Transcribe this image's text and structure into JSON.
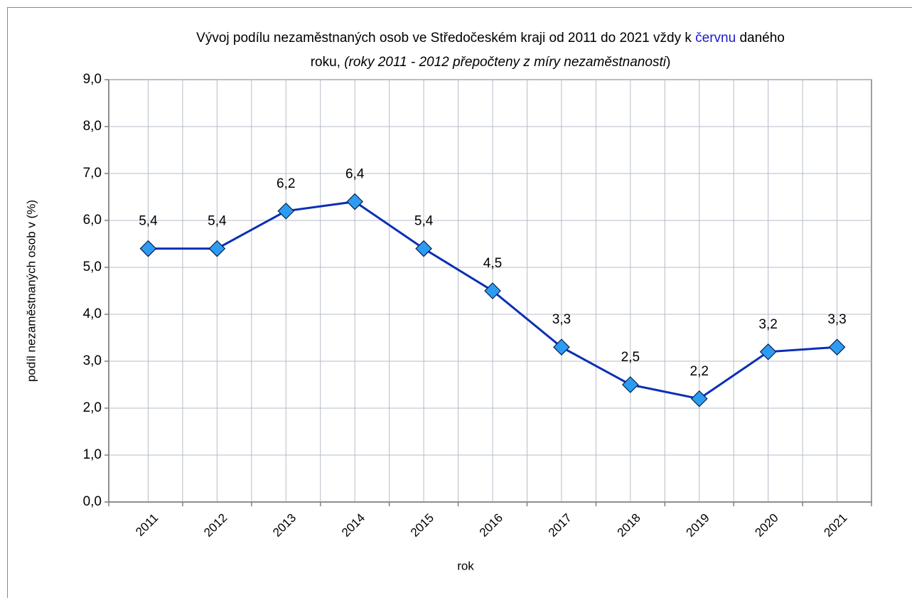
{
  "chart_data": {
    "type": "line",
    "title_parts": [
      "Vývoj podílu nezaměstnaných osob ve Středočeském kraji od 2011 do 2021 vždy k ",
      "červnu",
      " daného",
      "roku, ",
      "(roky 2011 - 2012 přepočteny z míry nezaměstnanosti",
      ")"
    ],
    "x_label": "rok",
    "y_label": "podíl nezaměstnaných osob v (%)",
    "categories": [
      "2011",
      "2012",
      "2013",
      "2014",
      "2015",
      "2016",
      "2017",
      "2018",
      "2019",
      "2020",
      "2021"
    ],
    "series": [
      {
        "name": "podíl nezaměstnaných osob",
        "color": "#0a2fb5",
        "marker_color": "#2c9cf2",
        "values": [
          5.4,
          5.4,
          6.2,
          6.4,
          5.4,
          4.5,
          3.3,
          2.5,
          2.2,
          3.2,
          3.3
        ],
        "value_labels": [
          "5,4",
          "5,4",
          "6,2",
          "6,4",
          "5,4",
          "4,5",
          "3,3",
          "2,5",
          "2,2",
          "3,2",
          "3,3"
        ]
      }
    ],
    "ylim": [
      0,
      9
    ],
    "yticks": [
      {
        "value": 0,
        "label": "0,0"
      },
      {
        "value": 1,
        "label": "1,0"
      },
      {
        "value": 2,
        "label": "2,0"
      },
      {
        "value": 3,
        "label": "3,0"
      },
      {
        "value": 4,
        "label": "4,0"
      },
      {
        "value": 5,
        "label": "5,0"
      },
      {
        "value": 6,
        "label": "6,0"
      },
      {
        "value": 7,
        "label": "7,0"
      },
      {
        "value": 8,
        "label": "8,0"
      },
      {
        "value": 9,
        "label": "9,0"
      }
    ],
    "grid": true
  }
}
